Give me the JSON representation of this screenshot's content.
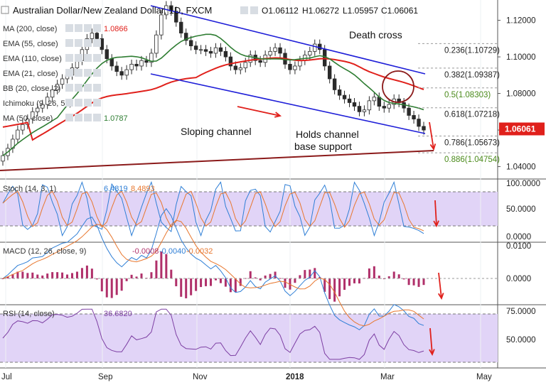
{
  "header": {
    "symbol_title": "Australian Dollar/New Zealand Dollar, 1D, FXCM",
    "ohlc": [
      "O1.06112",
      "H1.06272",
      "L1.05957",
      "C1.06061"
    ]
  },
  "indicator_legends": [
    {
      "label": "MA (200, close)",
      "value": "1.0866",
      "color": "#e0201b"
    },
    {
      "label": "EMA (55, close)",
      "value": "",
      "color": "#444444"
    },
    {
      "label": "EMA (110, close)",
      "value": "",
      "color": "#444444"
    },
    {
      "label": "EMA (21, close)",
      "value": "",
      "color": "#444444"
    },
    {
      "label": "BB (20, close, 2)",
      "value": "",
      "color": "#444444"
    },
    {
      "label": "Ichimoku (9, 26, 52)",
      "value": "",
      "color": "#444444"
    },
    {
      "label": "MA (50, close)",
      "value": "1.0787",
      "color": "#2e7d32"
    }
  ],
  "annotations": {
    "death_cross": "Death cross",
    "sloping_channel": "Sloping channel",
    "holds_channel_line1": "Holds channel",
    "holds_channel_line2": "base support"
  },
  "fib_levels": [
    {
      "label": "0.236(1.10729)",
      "value": 1.10729,
      "color": "#222222"
    },
    {
      "label": "0.382(1.09387)",
      "value": 1.09387,
      "color": "#222222"
    },
    {
      "label": "0.5(1.08303)",
      "value": 1.08303,
      "color": "#4a8a1a"
    },
    {
      "label": "0.618(1.07218)",
      "value": 1.07218,
      "color": "#222222"
    },
    {
      "label": "0.786(1.05673)",
      "value": 1.05673,
      "color": "#222222"
    },
    {
      "label": "0.886(1.04754)",
      "value": 1.04754,
      "color": "#4a8a1a"
    }
  ],
  "price_axis": {
    "ticks": [
      "1.12000",
      "1.10000",
      "1.08000",
      "1.06000",
      "1.04000"
    ],
    "current": "1.06061"
  },
  "x_axis": {
    "ticks": [
      "Jul",
      "Sep",
      "Nov",
      "2018",
      "Mar",
      "May"
    ]
  },
  "stoch": {
    "legend": "Stoch (14, 3, 1)",
    "values": [
      "6.4819",
      "8.4893"
    ],
    "ticks": [
      "100.0000",
      "50.0000",
      "0.0000"
    ]
  },
  "macd": {
    "legend": "MACD (12, 26, close, 9)",
    "values": [
      "-0.0008",
      "-0.0040",
      "-0.0032"
    ],
    "ticks": [
      "0.0100",
      "0.0000"
    ]
  },
  "rsi": {
    "legend": "RSI (14, close)",
    "value": "36.6820",
    "ticks": [
      "75.0000",
      "50.0000"
    ]
  },
  "colors": {
    "channel": "#1f1fd8",
    "ma200": "#e0201b",
    "ma50": "#2e7d32",
    "support": "#8b1a1a",
    "arrow": "#e0201b",
    "candle_up": "#2a2a2a",
    "candle_down": "#2a2a2a",
    "band": "#e1d4f7",
    "stoch_k": "#2f7fd6",
    "stoch_d": "#e8772e",
    "rsi": "#7d3fa3",
    "hist": "#b0306a",
    "price_tag": "#e0201b"
  },
  "chart_data": {
    "type": "candlestick",
    "title": "Australian Dollar/New Zealand Dollar, 1D, FXCM",
    "series_note": "approximate daily closes read from chart",
    "closes": [
      1.046,
      1.05,
      1.055,
      1.06,
      1.063,
      1.066,
      1.07,
      1.072,
      1.074,
      1.078,
      1.082,
      1.085,
      1.088,
      1.09,
      1.094,
      1.098,
      1.104,
      1.11,
      1.113,
      1.11,
      1.104,
      1.099,
      1.095,
      1.092,
      1.09,
      1.093,
      1.096,
      1.095,
      1.098,
      1.097,
      1.102,
      1.112,
      1.123,
      1.128,
      1.125,
      1.119,
      1.113,
      1.109,
      1.106,
      1.104,
      1.104,
      1.103,
      1.102,
      1.105,
      1.103,
      1.1,
      1.095,
      1.093,
      1.094,
      1.097,
      1.101,
      1.098,
      1.097,
      1.101,
      1.103,
      1.105,
      1.102,
      1.096,
      1.093,
      1.095,
      1.098,
      1.101,
      1.103,
      1.107,
      1.104,
      1.095,
      1.088,
      1.082,
      1.079,
      1.077,
      1.075,
      1.073,
      1.07,
      1.071,
      1.076,
      1.078,
      1.073,
      1.072,
      1.074,
      1.077,
      1.075,
      1.072,
      1.068,
      1.066,
      1.062,
      1.06
    ],
    "last": 1.06061
  }
}
